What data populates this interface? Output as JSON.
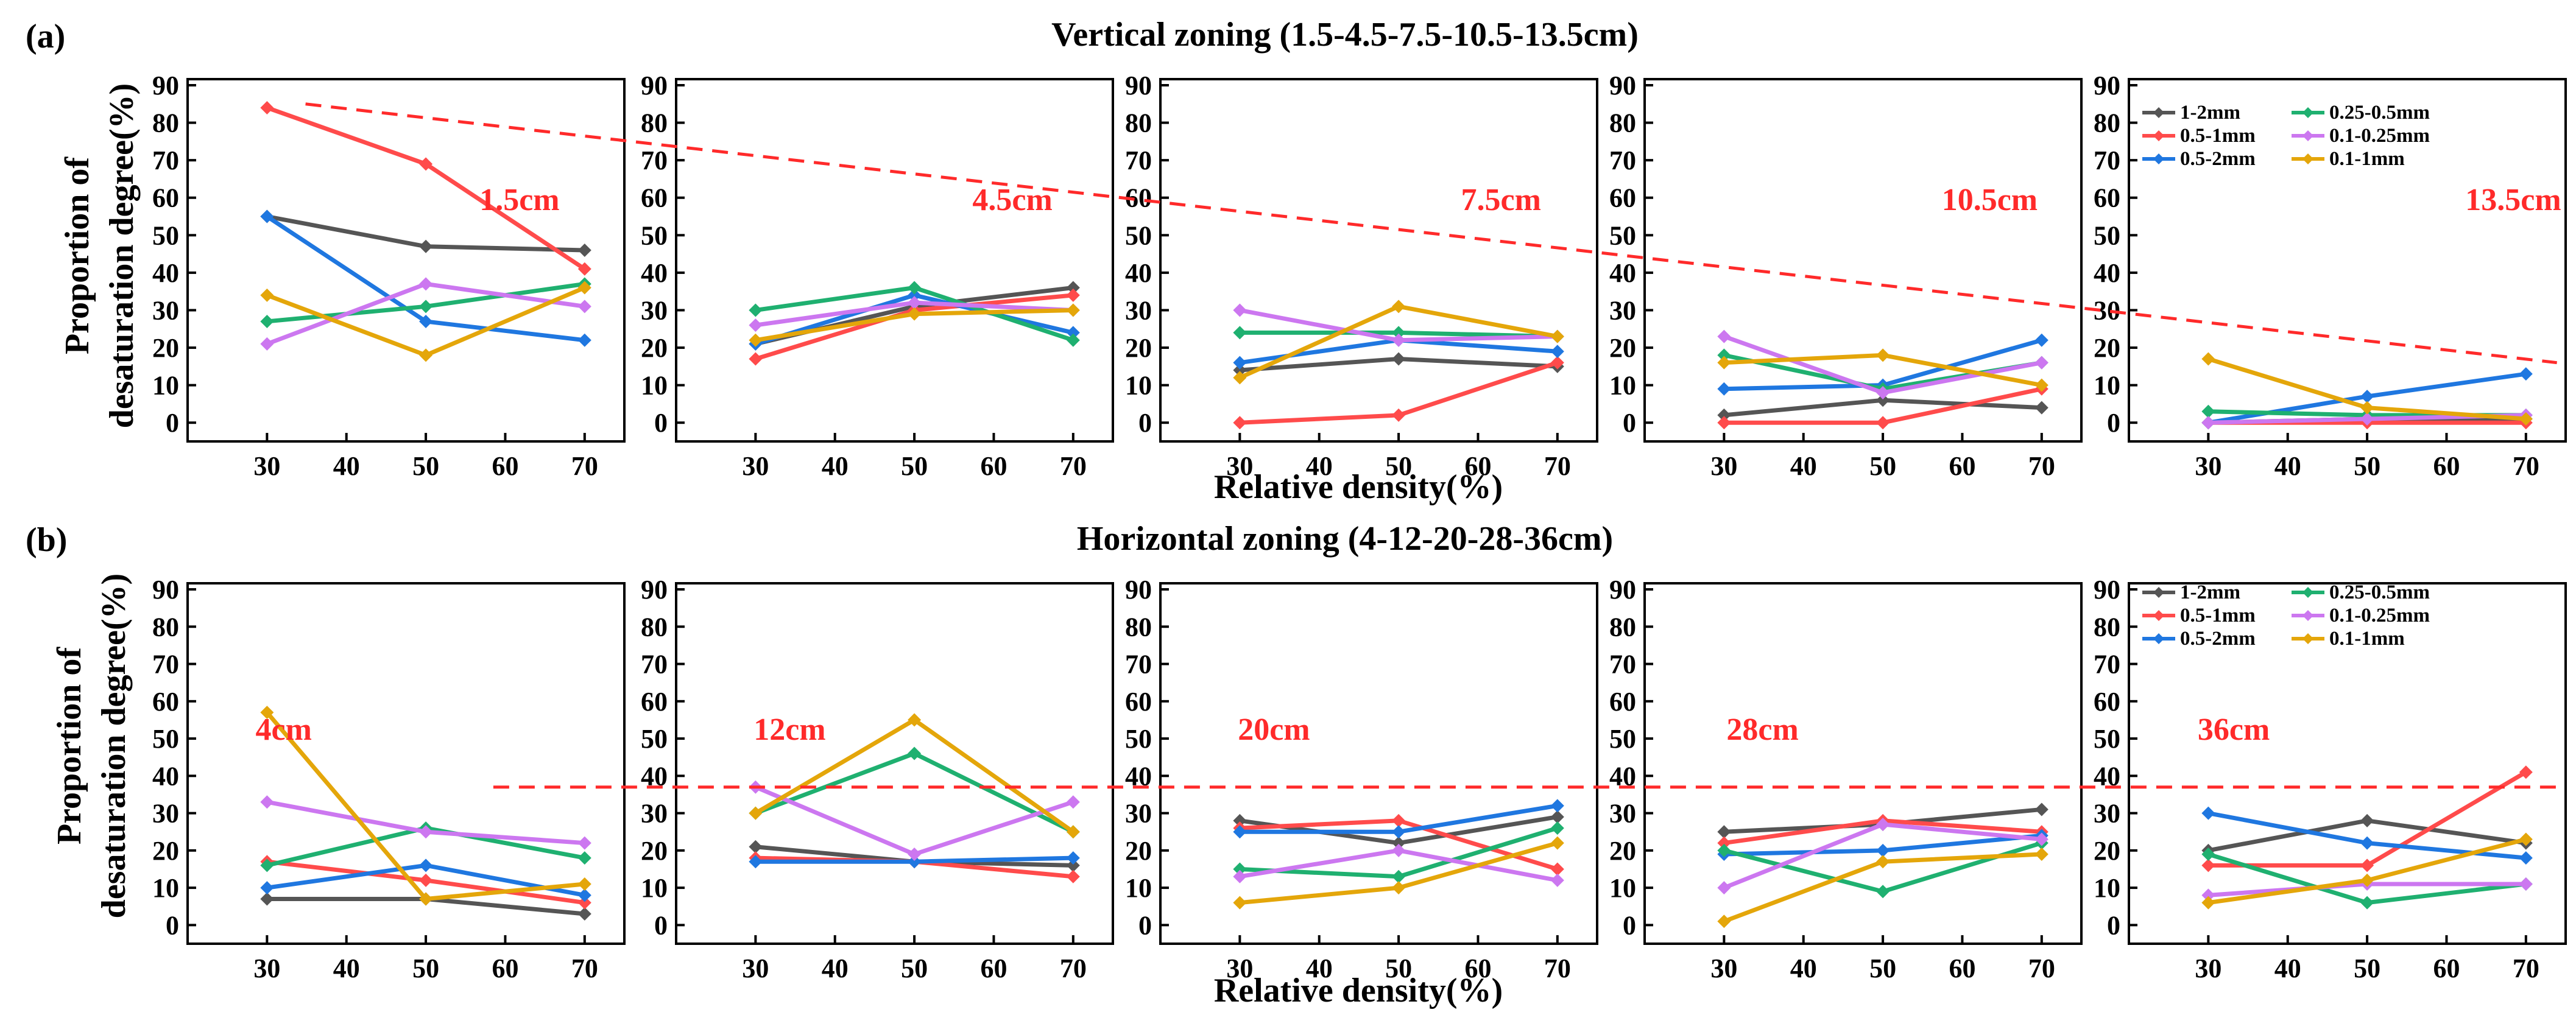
{
  "figure": {
    "y_label_line1": "Proportion of",
    "y_label_line2": "desaturation degree(%)",
    "x_label": "Relative density(%)",
    "x_ticks": [
      "30",
      "40",
      "50",
      "60",
      "70"
    ],
    "y_ticks": [
      "0",
      "10",
      "20",
      "30",
      "40",
      "50",
      "60",
      "70",
      "80",
      "90"
    ]
  },
  "chart_data": [
    {
      "type": "line",
      "panel": "(a)",
      "title": "Vertical zoning (1.5-4.5-7.5-10.5-13.5cm)",
      "xlabel": "Relative density(%)",
      "ylabel": "Proportion of desaturation degree(%)",
      "xlim": [
        20,
        75
      ],
      "ylim": [
        -5,
        90
      ],
      "x": [
        30,
        50,
        70
      ],
      "colors": {
        "1-2mm": "#555555",
        "0.5-1mm": "#ff4b4b",
        "0.5-2mm": "#1f77e0",
        "0.25-0.5mm": "#1fb070",
        "0.1-0.25mm": "#cc77f0",
        "0.1-1mm": "#e4a60a"
      },
      "legend": [
        {
          "name": "1-2mm",
          "color": "#555555"
        },
        {
          "name": "0.25-0.5mm",
          "color": "#1fb070"
        },
        {
          "name": "0.5-1mm",
          "color": "#ff4b4b"
        },
        {
          "name": "0.1-0.25mm",
          "color": "#cc77f0"
        },
        {
          "name": "0.5-2mm",
          "color": "#1f77e0"
        },
        {
          "name": "0.1-1mm",
          "color": "#e4a60a"
        }
      ],
      "trend_line": {
        "style": "dashed",
        "color": "#ff2a2a",
        "description": "decreasing envelope across zones",
        "approx_values": [
          85,
          16
        ]
      },
      "panels": [
        {
          "label": "1.5cm",
          "series": [
            {
              "name": "1-2mm",
              "values": [
                55,
                47,
                46
              ]
            },
            {
              "name": "0.5-1mm",
              "values": [
                84,
                69,
                41
              ]
            },
            {
              "name": "0.5-2mm",
              "values": [
                55,
                27,
                22
              ]
            },
            {
              "name": "0.25-0.5mm",
              "values": [
                27,
                31,
                37
              ]
            },
            {
              "name": "0.1-0.25mm",
              "values": [
                21,
                37,
                31
              ]
            },
            {
              "name": "0.1-1mm",
              "values": [
                34,
                18,
                36
              ]
            }
          ]
        },
        {
          "label": "4.5cm",
          "series": [
            {
              "name": "1-2mm",
              "values": [
                21,
                31,
                36
              ]
            },
            {
              "name": "0.5-1mm",
              "values": [
                17,
                30,
                34
              ]
            },
            {
              "name": "0.5-2mm",
              "values": [
                21,
                34,
                24
              ]
            },
            {
              "name": "0.25-0.5mm",
              "values": [
                30,
                36,
                22
              ]
            },
            {
              "name": "0.1-0.25mm",
              "values": [
                26,
                32,
                30
              ]
            },
            {
              "name": "0.1-1mm",
              "values": [
                22,
                29,
                30
              ]
            }
          ]
        },
        {
          "label": "7.5cm",
          "series": [
            {
              "name": "1-2mm",
              "values": [
                14,
                17,
                15
              ]
            },
            {
              "name": "0.5-1mm",
              "values": [
                0,
                2,
                16
              ]
            },
            {
              "name": "0.5-2mm",
              "values": [
                16,
                22,
                19
              ]
            },
            {
              "name": "0.25-0.5mm",
              "values": [
                24,
                24,
                23
              ]
            },
            {
              "name": "0.1-0.25mm",
              "values": [
                30,
                22,
                23
              ]
            },
            {
              "name": "0.1-1mm",
              "values": [
                12,
                31,
                23
              ]
            }
          ]
        },
        {
          "label": "10.5cm",
          "series": [
            {
              "name": "1-2mm",
              "values": [
                2,
                6,
                4
              ]
            },
            {
              "name": "0.5-1mm",
              "values": [
                0,
                0,
                9
              ]
            },
            {
              "name": "0.5-2mm",
              "values": [
                9,
                10,
                22
              ]
            },
            {
              "name": "0.25-0.5mm",
              "values": [
                18,
                9,
                16
              ]
            },
            {
              "name": "0.1-0.25mm",
              "values": [
                23,
                8,
                16
              ]
            },
            {
              "name": "0.1-1mm",
              "values": [
                16,
                18,
                10
              ]
            }
          ]
        },
        {
          "label": "13.5cm",
          "series": [
            {
              "name": "1-2mm",
              "values": [
                0,
                1,
                1
              ]
            },
            {
              "name": "0.5-1mm",
              "values": [
                0,
                0,
                0
              ]
            },
            {
              "name": "0.5-2mm",
              "values": [
                0,
                7,
                13
              ]
            },
            {
              "name": "0.25-0.5mm",
              "values": [
                3,
                2,
                2
              ]
            },
            {
              "name": "0.1-0.25mm",
              "values": [
                0,
                1,
                2
              ]
            },
            {
              "name": "0.1-1mm",
              "values": [
                17,
                4,
                1
              ]
            }
          ]
        }
      ]
    },
    {
      "type": "line",
      "panel": "(b)",
      "title": "Horizontal zoning (4-12-20-28-36cm)",
      "xlabel": "Relative density(%)",
      "ylabel": "Proportion of desaturation degree(%)",
      "xlim": [
        20,
        75
      ],
      "ylim": [
        -5,
        90
      ],
      "x": [
        30,
        50,
        70
      ],
      "colors": {
        "1-2mm": "#555555",
        "0.5-1mm": "#ff4b4b",
        "0.5-2mm": "#1f77e0",
        "0.25-0.5mm": "#1fb070",
        "0.1-0.25mm": "#cc77f0",
        "0.1-1mm": "#e4a60a"
      },
      "legend": [
        {
          "name": "1-2mm",
          "color": "#555555"
        },
        {
          "name": "0.25-0.5mm",
          "color": "#1fb070"
        },
        {
          "name": "0.5-1mm",
          "color": "#ff4b4b"
        },
        {
          "name": "0.1-0.25mm",
          "color": "#cc77f0"
        },
        {
          "name": "0.5-2mm",
          "color": "#1f77e0"
        },
        {
          "name": "0.1-1mm",
          "color": "#e4a60a"
        }
      ],
      "trend_line": {
        "style": "dashed",
        "color": "#ff2a2a",
        "description": "constant reference level",
        "approx_values": [
          37,
          37
        ]
      },
      "panels": [
        {
          "label": "4cm",
          "series": [
            {
              "name": "1-2mm",
              "values": [
                7,
                7,
                3
              ]
            },
            {
              "name": "0.5-1mm",
              "values": [
                17,
                12,
                6
              ]
            },
            {
              "name": "0.5-2mm",
              "values": [
                10,
                16,
                8
              ]
            },
            {
              "name": "0.25-0.5mm",
              "values": [
                16,
                26,
                18
              ]
            },
            {
              "name": "0.1-0.25mm",
              "values": [
                33,
                25,
                22
              ]
            },
            {
              "name": "0.1-1mm",
              "values": [
                57,
                7,
                11
              ]
            }
          ]
        },
        {
          "label": "12cm",
          "series": [
            {
              "name": "1-2mm",
              "values": [
                21,
                17,
                16
              ]
            },
            {
              "name": "0.5-1mm",
              "values": [
                18,
                17,
                13
              ]
            },
            {
              "name": "0.5-2mm",
              "values": [
                17,
                17,
                18
              ]
            },
            {
              "name": "0.25-0.5mm",
              "values": [
                30,
                46,
                25
              ]
            },
            {
              "name": "0.1-0.25mm",
              "values": [
                37,
                19,
                33
              ]
            },
            {
              "name": "0.1-1mm",
              "values": [
                30,
                55,
                25
              ]
            }
          ]
        },
        {
          "label": "20cm",
          "series": [
            {
              "name": "1-2mm",
              "values": [
                28,
                22,
                29
              ]
            },
            {
              "name": "0.5-1mm",
              "values": [
                26,
                28,
                15
              ]
            },
            {
              "name": "0.5-2mm",
              "values": [
                25,
                25,
                32
              ]
            },
            {
              "name": "0.25-0.5mm",
              "values": [
                15,
                13,
                26
              ]
            },
            {
              "name": "0.1-0.25mm",
              "values": [
                13,
                20,
                12
              ]
            },
            {
              "name": "0.1-1mm",
              "values": [
                6,
                10,
                22
              ]
            }
          ]
        },
        {
          "label": "28cm",
          "series": [
            {
              "name": "1-2mm",
              "values": [
                25,
                27,
                31
              ]
            },
            {
              "name": "0.5-1mm",
              "values": [
                22,
                28,
                25
              ]
            },
            {
              "name": "0.5-2mm",
              "values": [
                19,
                20,
                24
              ]
            },
            {
              "name": "0.25-0.5mm",
              "values": [
                20,
                9,
                22
              ]
            },
            {
              "name": "0.1-0.25mm",
              "values": [
                10,
                27,
                23
              ]
            },
            {
              "name": "0.1-1mm",
              "values": [
                1,
                17,
                19
              ]
            }
          ]
        },
        {
          "label": "36cm",
          "series": [
            {
              "name": "1-2mm",
              "values": [
                20,
                28,
                22
              ]
            },
            {
              "name": "0.5-1mm",
              "values": [
                16,
                16,
                41
              ]
            },
            {
              "name": "0.5-2mm",
              "values": [
                30,
                22,
                18
              ]
            },
            {
              "name": "0.25-0.5mm",
              "values": [
                19,
                6,
                11
              ]
            },
            {
              "name": "0.1-0.25mm",
              "values": [
                8,
                11,
                11
              ]
            },
            {
              "name": "0.1-1mm",
              "values": [
                6,
                12,
                23
              ]
            }
          ]
        }
      ]
    }
  ]
}
